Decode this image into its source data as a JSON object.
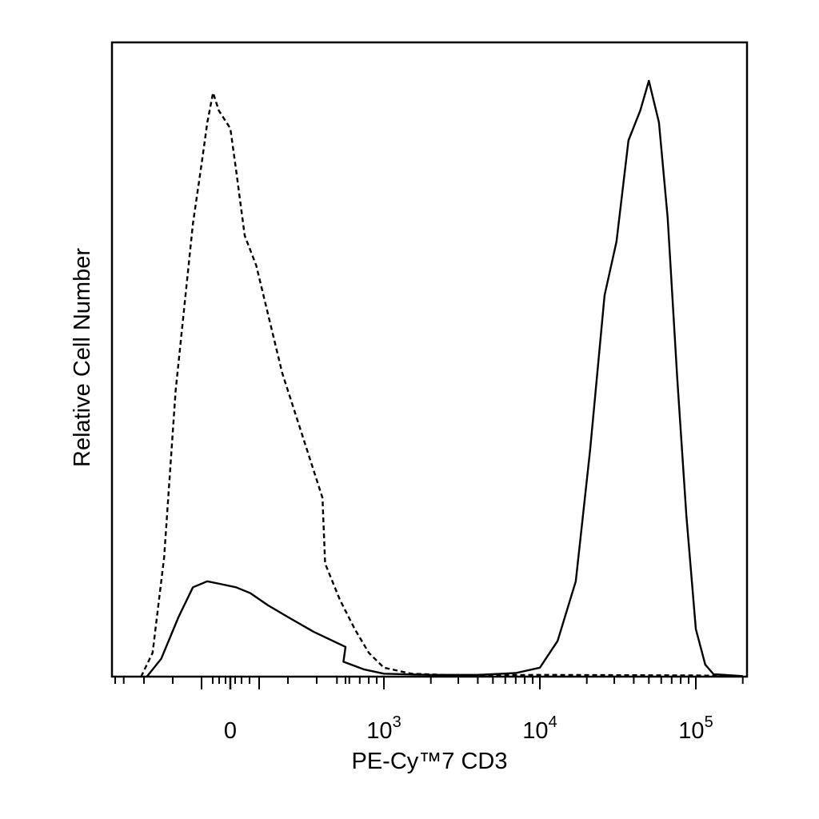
{
  "chart_data": {
    "type": "line",
    "title": "",
    "xlabel": "PE-Cy™7 CD3",
    "ylabel": "Relative Cell Number",
    "x_scale": "biexponential",
    "x_tick_labels": [
      {
        "value": 0,
        "base": "0",
        "exp": ""
      },
      {
        "value": 1000,
        "base": "10",
        "exp": "3"
      },
      {
        "value": 10000,
        "base": "10",
        "exp": "4"
      },
      {
        "value": 100000,
        "base": "10",
        "exp": "5"
      }
    ],
    "y_ticks_shown": false,
    "grid": false,
    "legend": "none",
    "colors": {
      "line": "#000000",
      "axes": "#000000",
      "background": "#ffffff"
    },
    "series": [
      {
        "line_style": "dashed",
        "points": [
          [
            -310,
            0.0
          ],
          [
            -270,
            0.04
          ],
          [
            -230,
            0.2
          ],
          [
            -190,
            0.48
          ],
          [
            -160,
            0.62
          ],
          [
            -130,
            0.76
          ],
          [
            -100,
            0.86
          ],
          [
            -80,
            0.93
          ],
          [
            -60,
            0.98
          ],
          [
            -40,
            0.95
          ],
          [
            0,
            0.92
          ],
          [
            20,
            0.85
          ],
          [
            50,
            0.74
          ],
          [
            90,
            0.69
          ],
          [
            130,
            0.61
          ],
          [
            180,
            0.51
          ],
          [
            240,
            0.42
          ],
          [
            320,
            0.3
          ],
          [
            420,
            0.19
          ],
          [
            520,
            0.13
          ],
          [
            650,
            0.08
          ],
          [
            800,
            0.04
          ],
          [
            1000,
            0.015
          ],
          [
            1500,
            0.005
          ],
          [
            3000,
            0.002
          ],
          [
            10000,
            0.003
          ],
          [
            100000,
            0.002
          ],
          [
            200000,
            0.001
          ]
        ]
      },
      {
        "line_style": "solid",
        "points": [
          [
            -290,
            0.0
          ],
          [
            -240,
            0.03
          ],
          [
            -180,
            0.1
          ],
          [
            -130,
            0.15
          ],
          [
            -80,
            0.16
          ],
          [
            -30,
            0.155
          ],
          [
            20,
            0.15
          ],
          [
            70,
            0.14
          ],
          [
            130,
            0.12
          ],
          [
            200,
            0.1
          ],
          [
            290,
            0.075
          ],
          [
            400,
            0.05
          ],
          [
            550,
            0.025
          ],
          [
            750,
            0.012
          ],
          [
            1000,
            0.005
          ],
          [
            2000,
            0.003
          ],
          [
            4000,
            0.003
          ],
          [
            7000,
            0.006
          ],
          [
            10000,
            0.015
          ],
          [
            13000,
            0.06
          ],
          [
            17000,
            0.16
          ],
          [
            21000,
            0.38
          ],
          [
            26000,
            0.64
          ],
          [
            31000,
            0.73
          ],
          [
            37000,
            0.9
          ],
          [
            44000,
            0.95
          ],
          [
            50000,
            1.0
          ],
          [
            58000,
            0.93
          ],
          [
            66000,
            0.77
          ],
          [
            76000,
            0.5
          ],
          [
            87000,
            0.27
          ],
          [
            100000,
            0.08
          ],
          [
            115000,
            0.02
          ],
          [
            130000,
            0.004
          ],
          [
            200000,
            0.001
          ]
        ]
      }
    ]
  }
}
